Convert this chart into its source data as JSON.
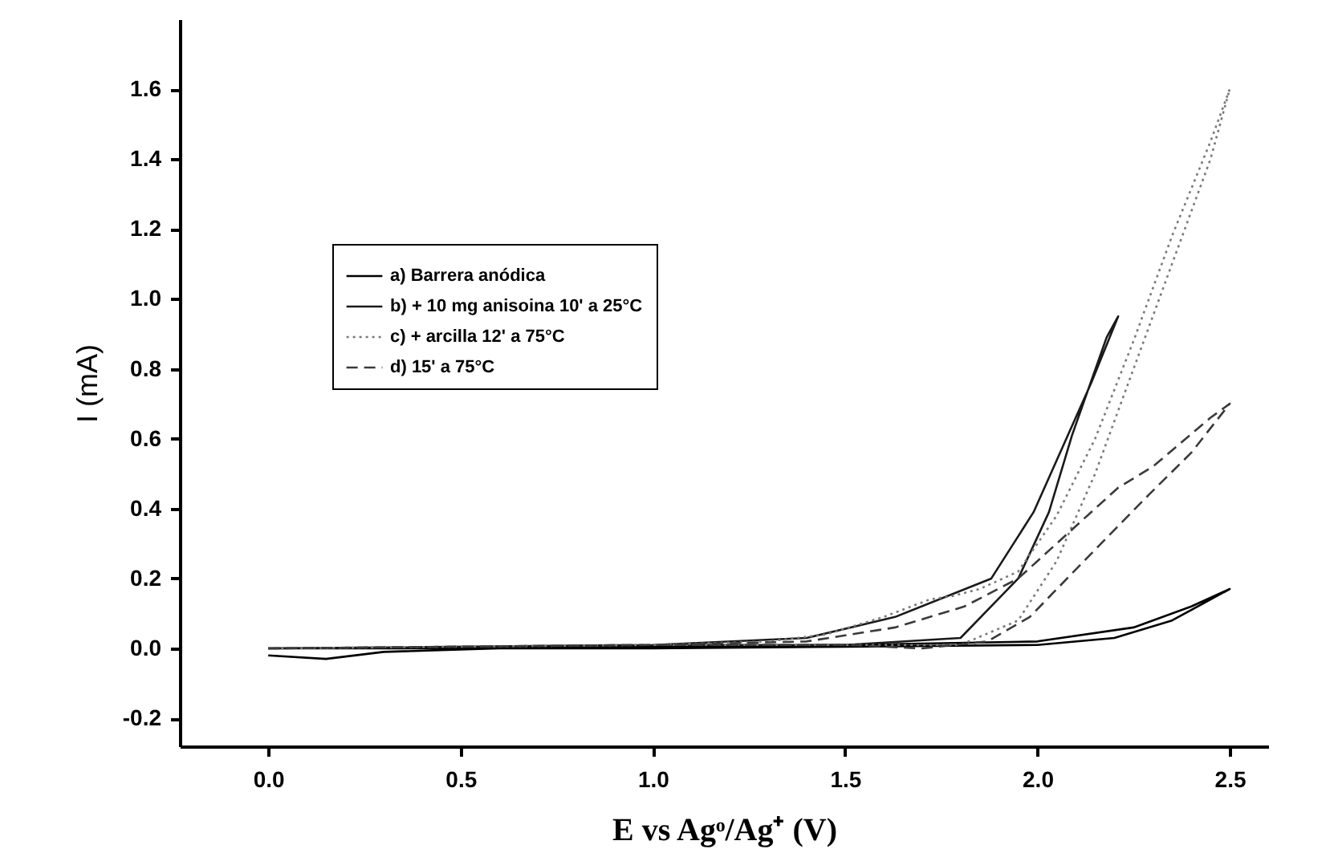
{
  "chart_data": {
    "type": "line",
    "xlabel": "E vs Agᵒ/Ag⁺ (V)",
    "ylabel": "I (mA)",
    "xlim": [
      -0.23,
      2.6
    ],
    "ylim": [
      -0.28,
      1.8
    ],
    "xticks": [
      {
        "value": 0,
        "label": "0.0"
      },
      0.5,
      {
        "value": 1,
        "label": "1.0"
      },
      1.5,
      {
        "value": 2,
        "label": "2.0"
      },
      2.5
    ],
    "yticks": [
      -0.2,
      {
        "value": 0,
        "label": "0.0"
      },
      0.2,
      0.4,
      0.6,
      0.8,
      {
        "value": 1,
        "label": "1.0"
      },
      1.2,
      1.4,
      1.6
    ],
    "grid": false,
    "legend": "top left",
    "marker": "none",
    "series": [
      {
        "name": "a) Barrera anódica",
        "color": "#000000",
        "line_style": "solid",
        "x": [
          0,
          0.15,
          0.3,
          0.6,
          1.0,
          1.5,
          2.0,
          2.2,
          2.35,
          2.5,
          2.4,
          2.25,
          2.0,
          1.5,
          1.0,
          0.5,
          0
        ],
        "values": [
          -0.02,
          -0.03,
          -0.01,
          0,
          0,
          0.005,
          0.01,
          0.03,
          0.08,
          0.17,
          0.12,
          0.06,
          0.02,
          0.01,
          0.005,
          0,
          0
        ]
      },
      {
        "name": "b) + 10 mg anisoina 10' a 25°C",
        "color": "#1a1a1a",
        "line_style": "solid",
        "x": [
          0,
          1.0,
          1.5,
          1.8,
          1.95,
          2.03,
          2.09,
          2.18,
          2.21,
          2.14,
          1.99,
          1.88,
          1.63,
          1.4,
          1.0
        ],
        "values": [
          0,
          0.01,
          0.01,
          0.03,
          0.2,
          0.39,
          0.61,
          0.89,
          0.95,
          0.76,
          0.39,
          0.2,
          0.09,
          0.03,
          0.01
        ]
      },
      {
        "name": "c) + arcilla 12' a 75°C",
        "color": "#7a7a7a",
        "line_style": "dotted",
        "x": [
          0,
          1.0,
          1.5,
          1.8,
          1.95,
          2.05,
          2.15,
          2.25,
          2.35,
          2.45,
          2.5,
          2.45,
          2.35,
          2.25,
          2.15,
          2.05,
          1.95,
          1.85,
          1.78,
          1.72,
          1.6,
          1.45,
          1.3,
          1.0
        ],
        "values": [
          0,
          0.01,
          0.01,
          0.01,
          0.08,
          0.25,
          0.5,
          0.8,
          1.1,
          1.4,
          1.6,
          1.45,
          1.18,
          0.88,
          0.6,
          0.38,
          0.22,
          0.17,
          0.15,
          0.14,
          0.09,
          0.04,
          0.02,
          0.01
        ]
      },
      {
        "name": "d) 15' a 75°C",
        "color": "#3a3a3a",
        "line_style": "dashed",
        "x": [
          0,
          1.0,
          1.5,
          1.7,
          1.87,
          1.98,
          2.13,
          2.29,
          2.4,
          2.5,
          2.45,
          2.3,
          2.21,
          2.09,
          1.95,
          1.81,
          1.63,
          1.4,
          1.0
        ],
        "values": [
          0,
          0.01,
          0.01,
          0,
          0.02,
          0.09,
          0.26,
          0.44,
          0.56,
          0.7,
          0.66,
          0.52,
          0.46,
          0.34,
          0.2,
          0.12,
          0.06,
          0.02,
          0.01
        ]
      }
    ]
  }
}
